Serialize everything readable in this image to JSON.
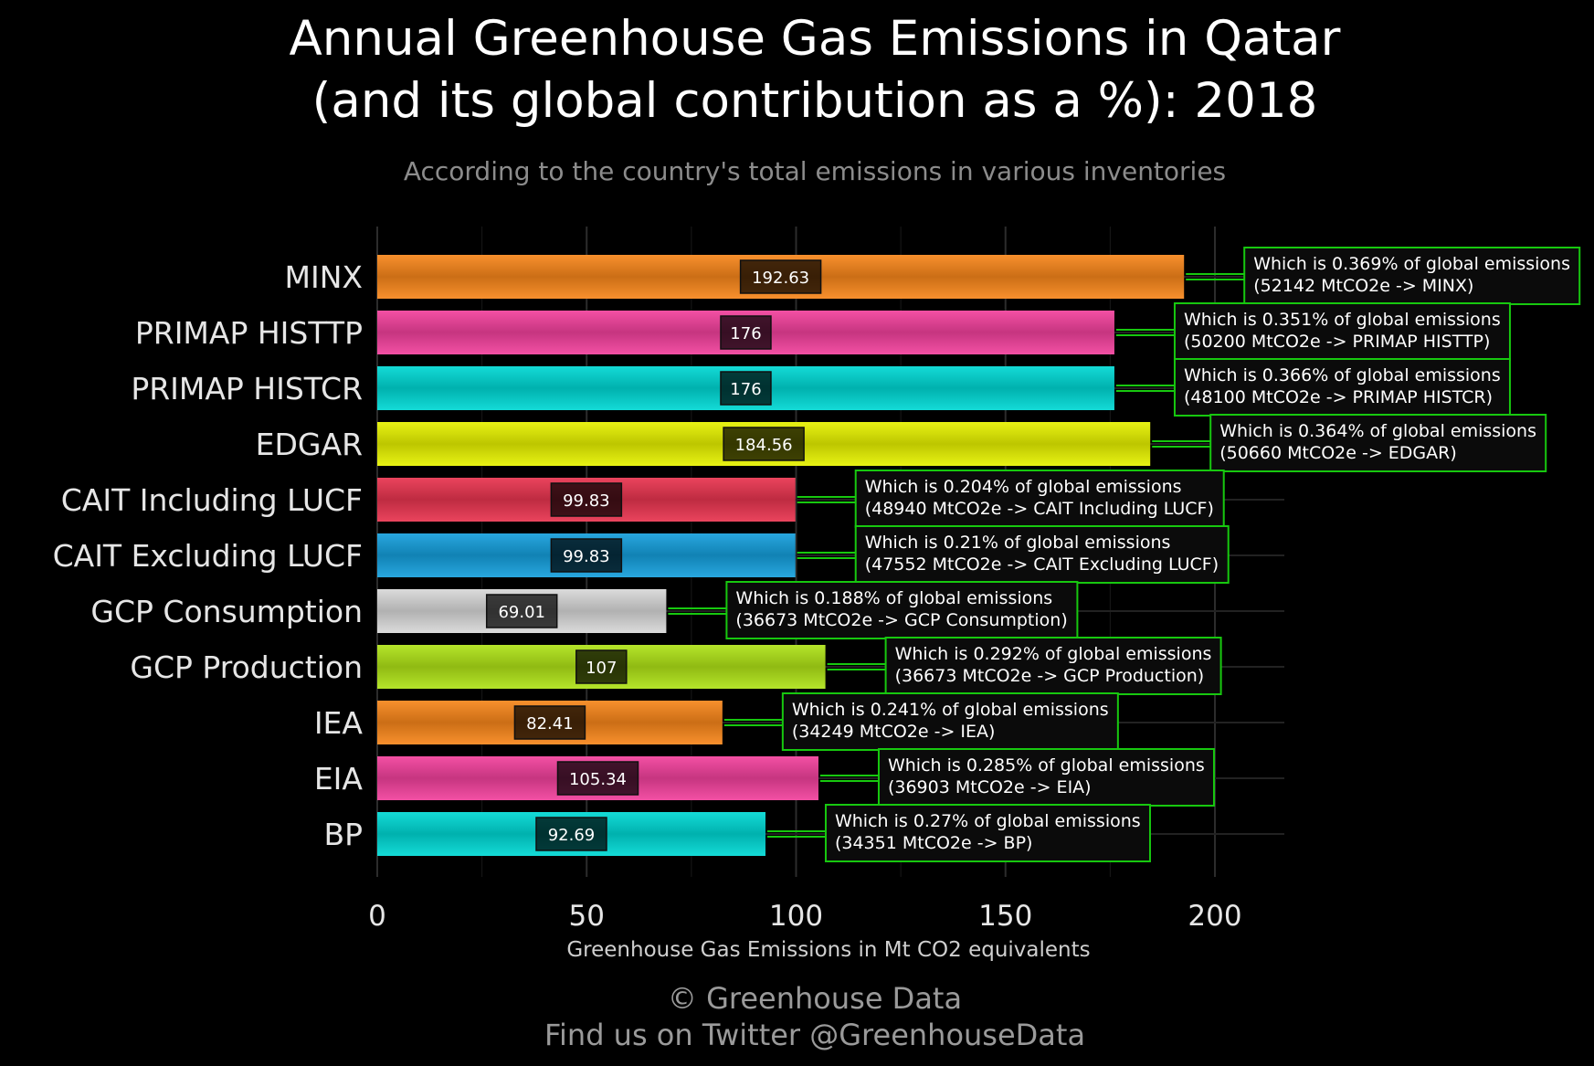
{
  "chart_data": {
    "type": "bar",
    "orientation": "horizontal",
    "title_line1": "Annual Greenhouse Gas Emissions in Qatar",
    "title_line2": "(and its global contribution as a %): 2018",
    "subtitle": "According to the country's total emissions in various inventories",
    "xlabel": "Greenhouse Gas Emissions in Mt CO2 equivalents",
    "xlim": [
      0,
      215
    ],
    "xticks": [
      0,
      50,
      100,
      150,
      200
    ],
    "grid": true,
    "categories": [
      "MINX",
      "PRIMAP HISTTP",
      "PRIMAP HISTCR",
      "EDGAR",
      "CAIT Including LUCF",
      "CAIT Excluding LUCF",
      "GCP Consumption",
      "GCP Production",
      "IEA",
      "EIA",
      "BP"
    ],
    "values": [
      192.63,
      176,
      176,
      184.56,
      99.83,
      99.83,
      69.01,
      107,
      82.41,
      105.34,
      92.69
    ],
    "value_labels": [
      "192.63",
      "176",
      "176",
      "184.56",
      "99.83",
      "99.83",
      "69.01",
      "107",
      "82.41",
      "105.34",
      "92.69"
    ],
    "colors": [
      "#f7861b",
      "#f2419c",
      "#00d8d4",
      "#e6f200",
      "#e8344f",
      "#159fdc",
      "#d8d8d8",
      "#afe317",
      "#f7861b",
      "#f2419c",
      "#00d8d4"
    ],
    "annotations": [
      {
        "line1": "Which is 0.369% of global emissions",
        "line2": "(52142 MtCO2e -> MINX)"
      },
      {
        "line1": "Which is 0.351% of global emissions",
        "line2": "(50200 MtCO2e -> PRIMAP HISTTP)"
      },
      {
        "line1": "Which is 0.366% of global emissions",
        "line2": "(48100 MtCO2e -> PRIMAP HISTCR)"
      },
      {
        "line1": "Which is 0.364% of global emissions",
        "line2": "(50660 MtCO2e -> EDGAR)"
      },
      {
        "line1": "Which is 0.204% of global emissions",
        "line2": "(48940 MtCO2e -> CAIT Including LUCF)"
      },
      {
        "line1": "Which is 0.21% of global emissions",
        "line2": "(47552 MtCO2e -> CAIT Excluding LUCF)"
      },
      {
        "line1": "Which is 0.188% of global emissions",
        "line2": "(36673 MtCO2e -> GCP Consumption)"
      },
      {
        "line1": "Which is 0.292% of global emissions",
        "line2": "(36673 MtCO2e -> GCP Production)"
      },
      {
        "line1": "Which is 0.241% of global emissions",
        "line2": "(34249 MtCO2e -> IEA)"
      },
      {
        "line1": "Which is 0.285% of global emissions",
        "line2": "(36903 MtCO2e -> EIA)"
      },
      {
        "line1": "Which is 0.27% of global emissions",
        "line2": "(34351 MtCO2e -> BP)"
      }
    ],
    "annotation_border_color": "#17c80f",
    "footer_line1": "© Greenhouse Data",
    "footer_line2": "Find us on Twitter @GreenhouseData"
  }
}
